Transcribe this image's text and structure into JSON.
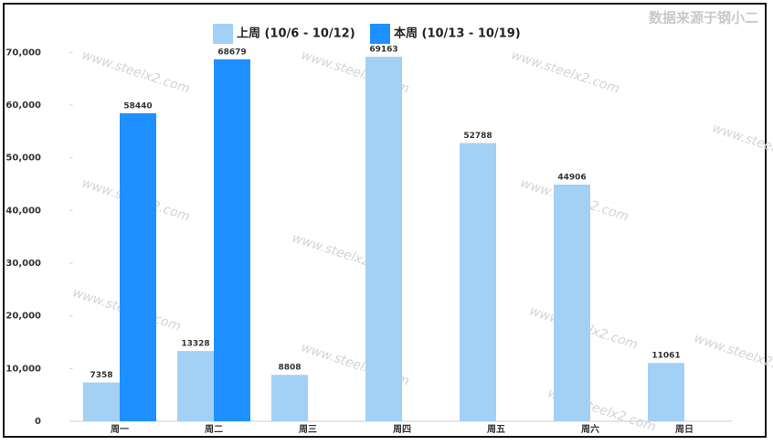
{
  "chart_data": {
    "type": "bar",
    "watermark": "数据来源于钢小二",
    "watermark_url": "www.steelx2.com",
    "categories": [
      "周一",
      "周二",
      "周三",
      "周四",
      "周五",
      "周六",
      "周日"
    ],
    "series": [
      {
        "name": "上周 (10/6 - 10/12)",
        "color": "#a3d0f5",
        "values": [
          7358,
          13328,
          8808,
          69163,
          52788,
          44906,
          11061
        ]
      },
      {
        "name": "本周 (10/13 - 10/19)",
        "color": "#1e90ff",
        "values": [
          58440,
          68679,
          null,
          null,
          null,
          null,
          null
        ]
      }
    ],
    "ylim": [
      0,
      73000
    ],
    "yticks": [
      0,
      {
        "value": 10000,
        "label": "10,000"
      },
      {
        "value": 20000,
        "label": "20,000"
      },
      {
        "value": 30000,
        "label": "30,000"
      },
      {
        "value": 40000,
        "label": "40,000"
      },
      {
        "value": 50000,
        "label": "50,000"
      },
      {
        "value": 60000,
        "label": "60,000"
      },
      {
        "value": 70000,
        "label": "70,000"
      }
    ],
    "grid": false,
    "legend": "top"
  }
}
